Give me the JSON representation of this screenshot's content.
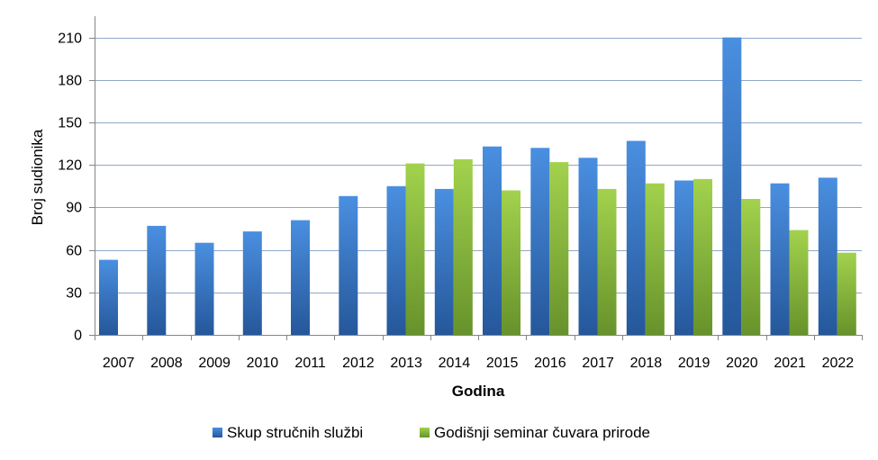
{
  "chart_data": {
    "type": "bar",
    "title": "",
    "xlabel": "Godina",
    "ylabel": "Broj sudionika",
    "ylim": [
      0,
      225
    ],
    "yticks": [
      0,
      30,
      60,
      90,
      120,
      150,
      180,
      210
    ],
    "grid": true,
    "legend_position": "bottom",
    "categories": [
      "2007",
      "2008",
      "2009",
      "2010",
      "2011",
      "2012",
      "2013",
      "2014",
      "2015",
      "2016",
      "2017",
      "2018",
      "2019",
      "2020",
      "2021",
      "2022"
    ],
    "series": [
      {
        "name": "Skup stručnih službi",
        "color": "#3d7cc9",
        "values": [
          53,
          77,
          65,
          73,
          81,
          98,
          105,
          103,
          133,
          132,
          125,
          137,
          109,
          210,
          107,
          111
        ]
      },
      {
        "name": "Godišnji seminar čuvara prirode",
        "color": "#8dc63f",
        "values": [
          null,
          null,
          null,
          null,
          null,
          null,
          121,
          124,
          102,
          122,
          103,
          107,
          110,
          96,
          74,
          58
        ]
      }
    ]
  }
}
